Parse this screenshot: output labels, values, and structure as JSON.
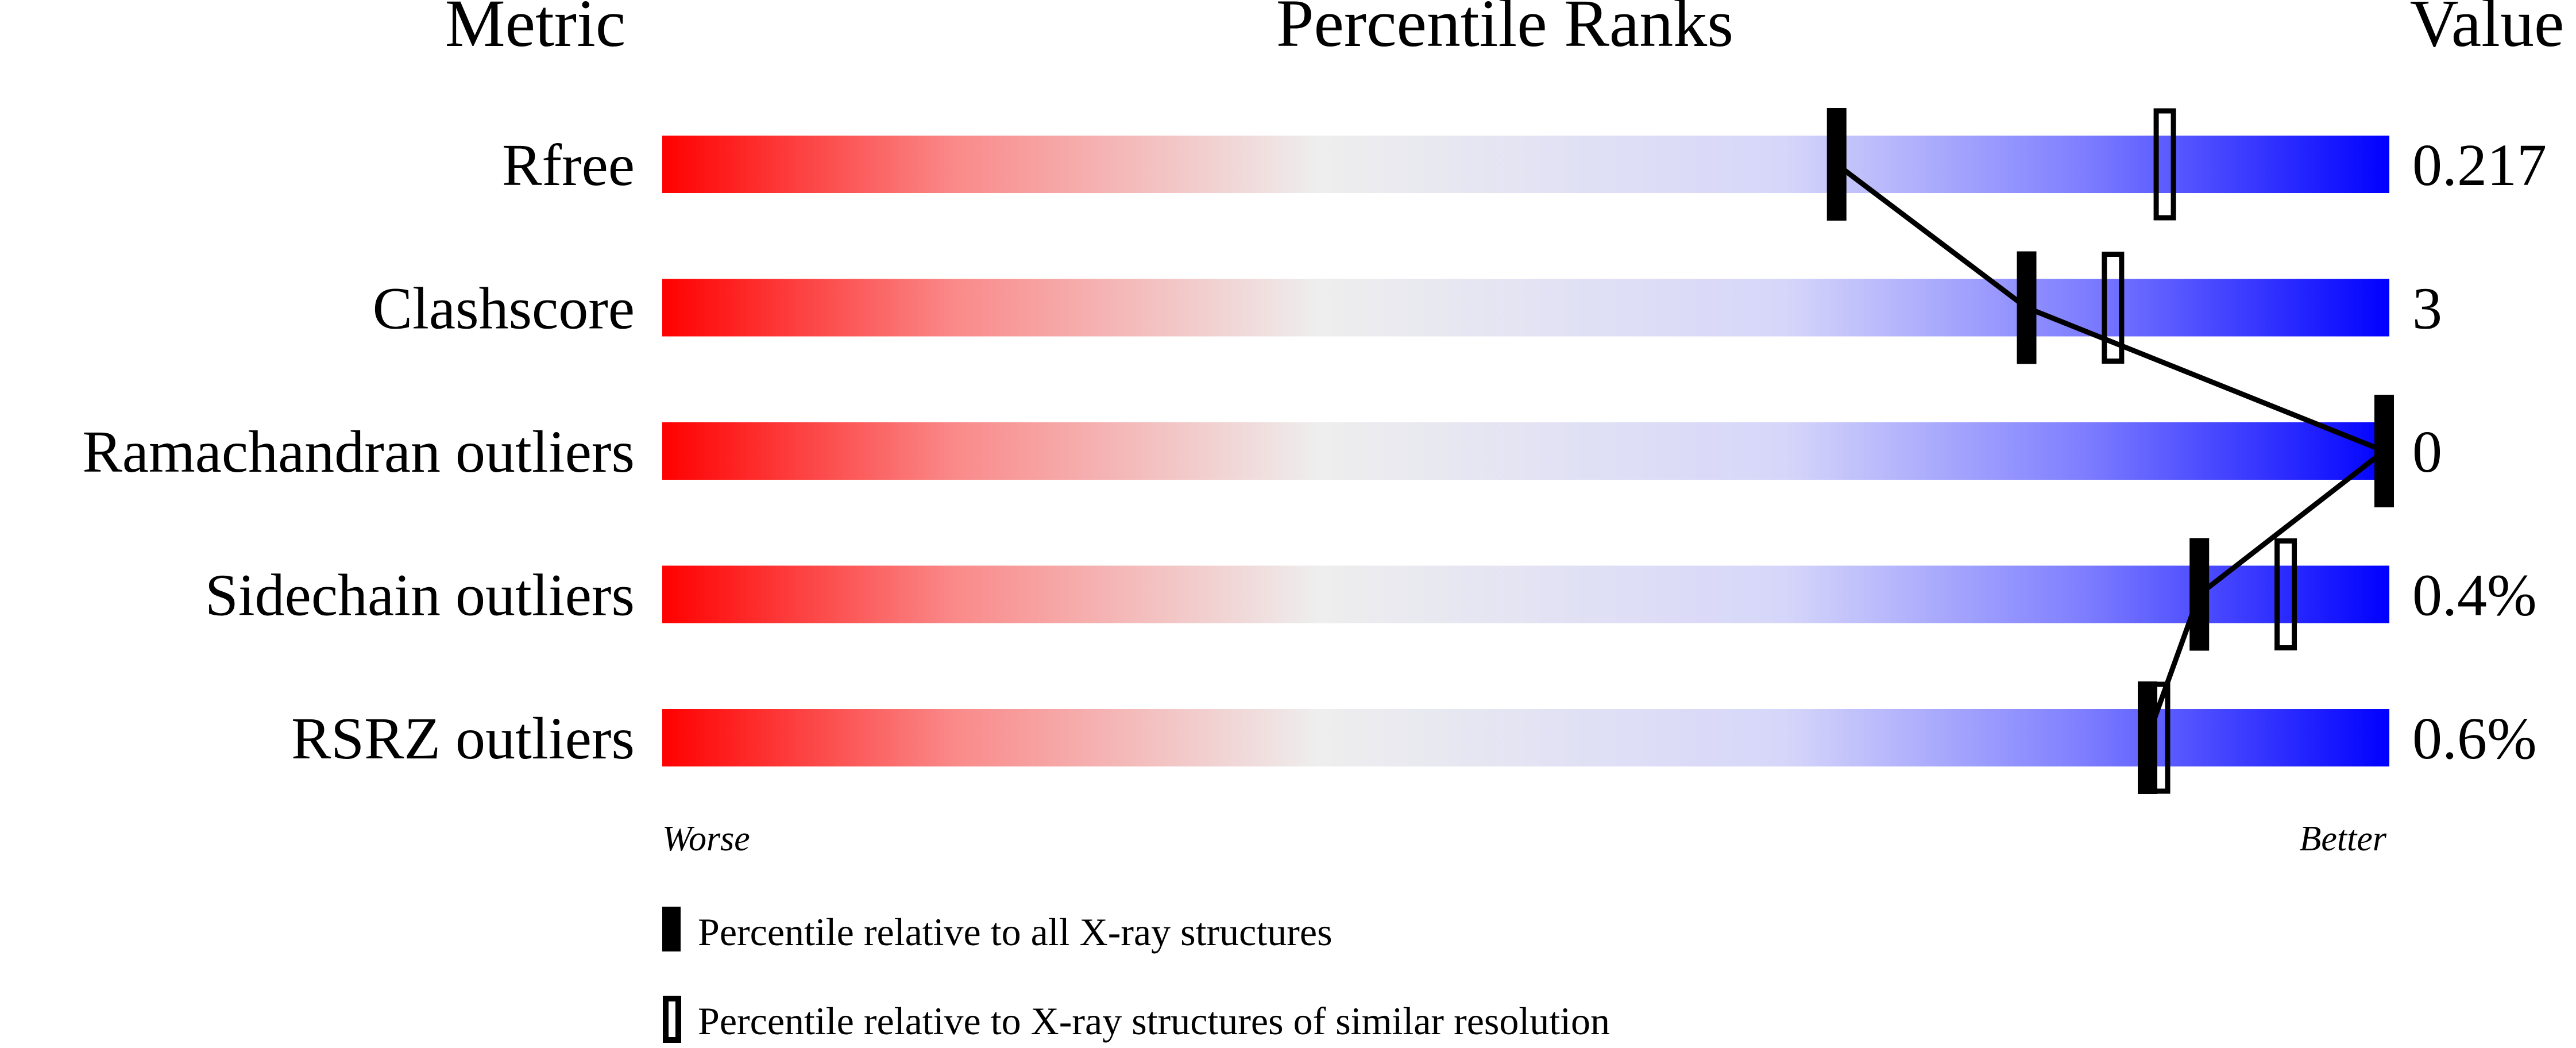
{
  "chart_data": {
    "type": "percentile-slider",
    "headers": {
      "metric": "Metric",
      "ranks": "Percentile Ranks",
      "value": "Value"
    },
    "xlim": [
      0,
      100
    ],
    "axis_labels": {
      "left": "Worse",
      "right": "Better"
    },
    "rows": [
      {
        "metric": "Rfree",
        "value": "0.217",
        "percentile_all": 68,
        "percentile_similar": 87
      },
      {
        "metric": "Clashscore",
        "value": "3",
        "percentile_all": 79,
        "percentile_similar": 84
      },
      {
        "metric": "Ramachandran outliers",
        "value": "0",
        "percentile_all": 100,
        "percentile_similar": null
      },
      {
        "metric": "Sidechain outliers",
        "value": "0.4%",
        "percentile_all": 89,
        "percentile_similar": 94
      },
      {
        "metric": "RSRZ outliers",
        "value": "0.6%",
        "percentile_all": 86,
        "percentile_similar": 86
      }
    ],
    "legend": [
      {
        "marker": "filled",
        "label": "Percentile relative to all X-ray structures"
      },
      {
        "marker": "open",
        "label": "Percentile relative to X-ray structures of similar resolution"
      }
    ],
    "colors": {
      "worse": "#ff0000",
      "middle": "#eeeeee",
      "better": "#0000ff",
      "marker": "#000000"
    }
  }
}
